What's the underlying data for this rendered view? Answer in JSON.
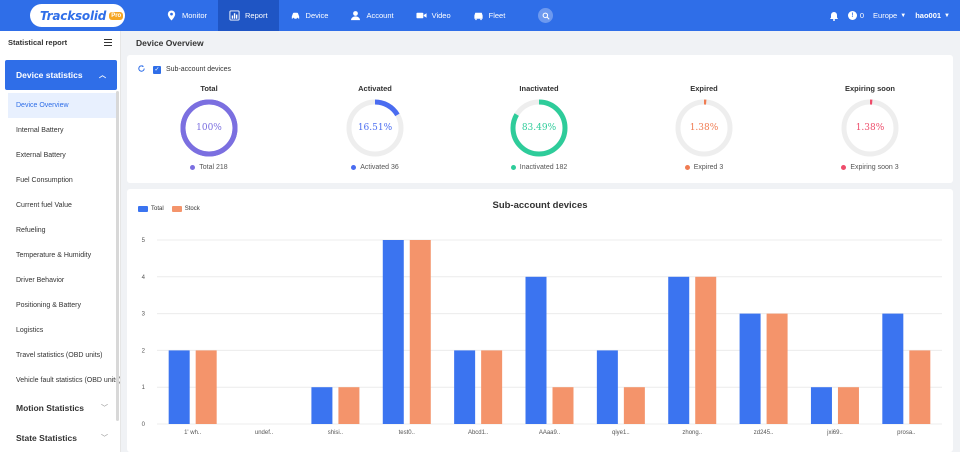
{
  "brand": {
    "logo_text": "Tracksolid",
    "logo_badge": "Pro"
  },
  "nav": [
    {
      "label": "Monitor",
      "icon": "location-pin-icon",
      "active": false
    },
    {
      "label": "Report",
      "icon": "bar-chart-icon",
      "active": true
    },
    {
      "label": "Device",
      "icon": "car-icon",
      "active": false
    },
    {
      "label": "Account",
      "icon": "user-icon",
      "active": false
    },
    {
      "label": "Video",
      "icon": "video-camera-icon",
      "active": false
    },
    {
      "label": "Fleet",
      "icon": "vehicle-icon",
      "active": false
    }
  ],
  "topright": {
    "notifications": "0",
    "region": "Europe",
    "user": "hao001"
  },
  "sidebar": {
    "title": "Statistical report",
    "section": "Device statistics",
    "items": [
      "Device Overview",
      "Internal Battery",
      "External Battery",
      "Fuel Consumption",
      "Current fuel Value",
      "Refueling",
      "Temperature & Humidity",
      "Driver Behavior",
      "Positioning & Battery",
      "Logistics",
      "Travel statistics (OBD units)",
      "Vehicle fault statistics (OBD units)"
    ],
    "groups": [
      "Motion Statistics",
      "State Statistics"
    ]
  },
  "page": {
    "title": "Device Overview",
    "subaccount_label": "Sub-account devices"
  },
  "stats": [
    {
      "title": "Total",
      "percent": "100%",
      "fraction": 1.0,
      "color": "#7b6fe0",
      "track": "#7b6fe0",
      "legend": "Total 218"
    },
    {
      "title": "Activated",
      "percent": "16.51%",
      "fraction": 0.1651,
      "color": "#4a6cf0",
      "track": "#eeeeee",
      "legend": "Activated 36"
    },
    {
      "title": "Inactivated",
      "percent": "83.49%",
      "fraction": 0.8349,
      "color": "#2ecc9a",
      "track": "#eeeeee",
      "legend": "Inactivated 182"
    },
    {
      "title": "Expired",
      "percent": "1.38%",
      "fraction": 0.0138,
      "color": "#f07c52",
      "track": "#eeeeee",
      "legend": "Expired 3"
    },
    {
      "title": "Expiring soon",
      "percent": "1.38%",
      "fraction": 0.0138,
      "color": "#ee4d6b",
      "track": "#eeeeee",
      "legend": "Expiring soon 3"
    }
  ],
  "chart_data": {
    "type": "bar",
    "title": "Sub-account devices",
    "categories": [
      "1' wh..",
      "undef..",
      "shisi..",
      "test0..",
      "Abcd1..",
      "AAaa9..",
      "qiye1..",
      "zhong..",
      "zd245..",
      "jxi69..",
      "prosa.."
    ],
    "series": [
      {
        "name": "Total",
        "color": "#3b74f0",
        "values": [
          2,
          0,
          1,
          5,
          2,
          4,
          2,
          4,
          3,
          1,
          3
        ]
      },
      {
        "name": "Stock",
        "color": "#f4946b",
        "values": [
          2,
          0,
          1,
          5,
          2,
          1,
          1,
          4,
          3,
          1,
          2
        ]
      }
    ],
    "ylim": [
      0,
      5
    ],
    "yticks": [
      0,
      1,
      2,
      3,
      4,
      5
    ],
    "legend_position": "top-left",
    "grid": true
  }
}
